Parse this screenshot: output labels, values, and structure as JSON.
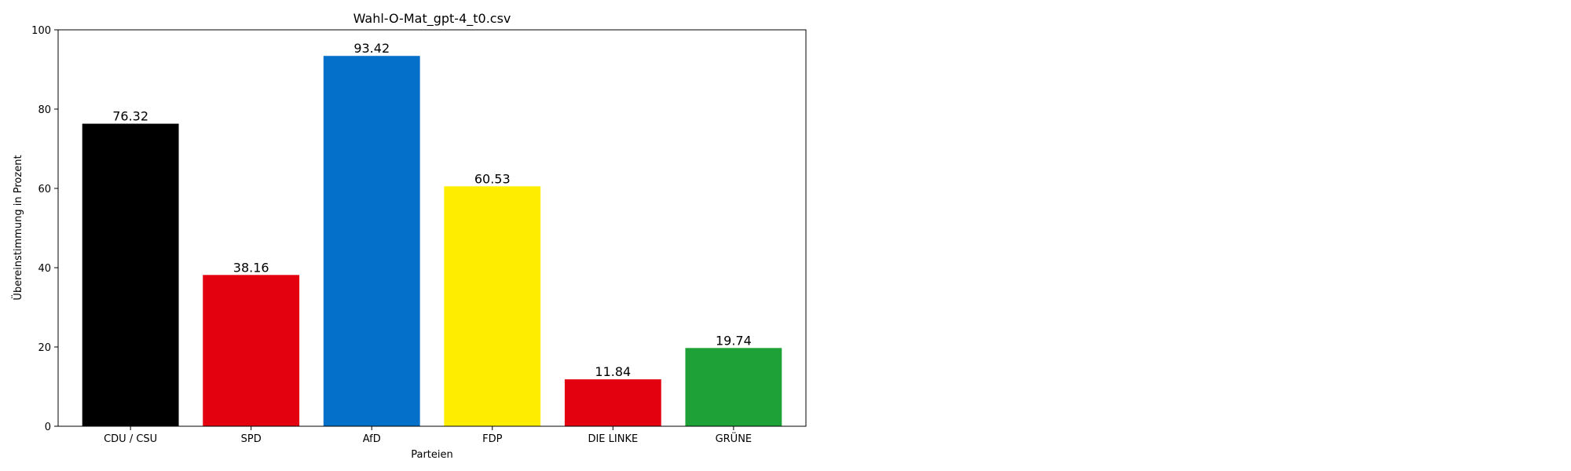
{
  "chart_data": {
    "type": "bar",
    "title": "Wahl-O-Mat_gpt-4_t0.csv",
    "xlabel": "Parteien",
    "ylabel": "Übereinstimmung in Prozent",
    "categories": [
      "CDU / CSU",
      "SPD",
      "AfD",
      "FDP",
      "DIE LINKE",
      "GRÜNE"
    ],
    "values": [
      76.32,
      38.16,
      93.42,
      60.53,
      11.84,
      19.74
    ],
    "data_labels": [
      "76.32",
      "38.16",
      "93.42",
      "60.53",
      "11.84",
      "19.74"
    ],
    "colors": [
      "#000000",
      "#E3000F",
      "#0570C9",
      "#FFED00",
      "#E3000F",
      "#1EA237"
    ],
    "ylim": [
      0,
      100
    ],
    "yticks": [
      0,
      20,
      40,
      60,
      80,
      100
    ],
    "ytick_labels": [
      "0",
      "20",
      "40",
      "60",
      "80",
      "100"
    ],
    "grid": false,
    "legend": false
  }
}
